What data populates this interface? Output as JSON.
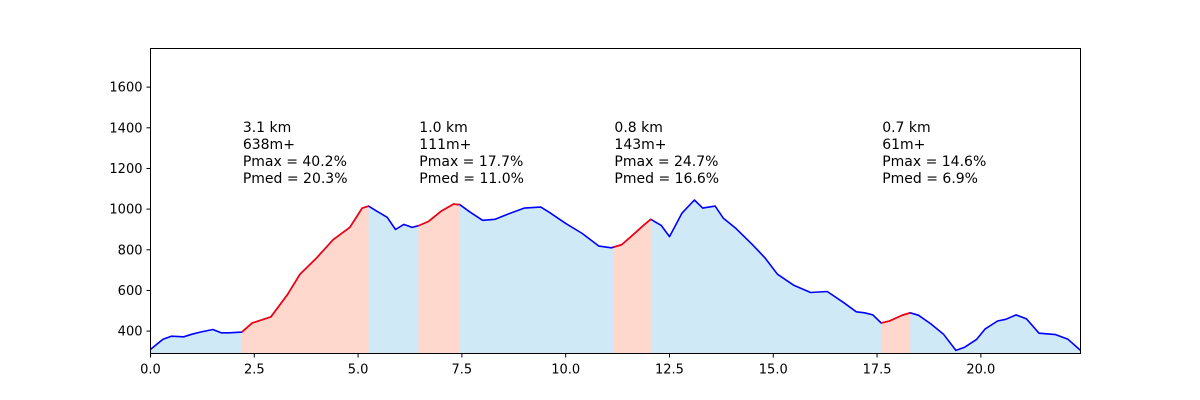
{
  "chart_data": {
    "type": "area",
    "title": "",
    "xlabel": "",
    "ylabel": "",
    "xlim": [
      0,
      22.4
    ],
    "ylim": [
      290,
      1790
    ],
    "xticks": [
      "0.0",
      "2.5",
      "5.0",
      "7.5",
      "10.0",
      "12.5",
      "15.0",
      "17.5",
      "20.0"
    ],
    "yticks": [
      "400",
      "600",
      "800",
      "1000",
      "1200",
      "1400",
      "1600"
    ],
    "grid": false,
    "colors": {
      "profile_line": "#0000ff",
      "climb_line": "#ff0000",
      "profile_fill": "#cfe9f6",
      "climb_fill": "#fed8cc"
    },
    "profile": {
      "x": [
        0,
        0.3,
        0.5,
        0.8,
        1.0,
        1.2,
        1.5,
        1.7,
        1.9,
        2.2,
        2.45,
        2.9,
        3.3,
        3.6,
        4.0,
        4.4,
        4.8,
        5.1,
        5.25,
        5.45,
        5.7,
        5.9,
        6.1,
        6.3,
        6.45,
        6.7,
        7.0,
        7.3,
        7.45,
        7.7,
        8.0,
        8.3,
        8.6,
        9.0,
        9.4,
        9.6,
        10.0,
        10.4,
        10.8,
        11.1,
        11.35,
        11.6,
        11.9,
        12.05,
        12.3,
        12.5,
        12.8,
        13.1,
        13.3,
        13.6,
        13.8,
        14.1,
        14.5,
        14.8,
        15.1,
        15.5,
        15.9,
        16.3,
        16.7,
        17.0,
        17.2,
        17.4,
        17.6,
        17.8,
        18.1,
        18.3,
        18.5,
        18.8,
        19.1,
        19.4,
        19.6,
        19.9,
        20.1,
        20.4,
        20.6,
        20.85,
        21.1,
        21.4,
        21.8,
        22.1,
        22.4
      ],
      "y": [
        310,
        360,
        375,
        372,
        385,
        395,
        408,
        392,
        392,
        395,
        440,
        470,
        580,
        680,
        760,
        850,
        910,
        1005,
        1015,
        990,
        960,
        900,
        925,
        910,
        918,
        940,
        990,
        1025,
        1022,
        985,
        945,
        950,
        975,
        1005,
        1010,
        985,
        930,
        880,
        818,
        810,
        825,
        870,
        925,
        950,
        920,
        865,
        980,
        1045,
        1005,
        1015,
        955,
        905,
        825,
        760,
        680,
        625,
        590,
        595,
        540,
        495,
        490,
        480,
        440,
        450,
        478,
        490,
        478,
        435,
        385,
        305,
        320,
        360,
        410,
        450,
        458,
        480,
        460,
        390,
        383,
        360,
        305
      ]
    },
    "climbs": [
      {
        "x_start": 2.2,
        "x_end": 5.25,
        "km_label": "3.1 km",
        "gain_label": "638m+",
        "pmax_label": "Pmax = 40.2%",
        "pmed_label": "Pmed = 20.3%"
      },
      {
        "x_start": 6.45,
        "x_end": 7.45,
        "km_label": "1.0 km",
        "gain_label": "111m+",
        "pmax_label": "Pmax = 17.7%",
        "pmed_label": "Pmed = 11.0%"
      },
      {
        "x_start": 11.15,
        "x_end": 12.05,
        "km_label": "0.8 km",
        "gain_label": "143m+",
        "pmax_label": "Pmax = 24.7%",
        "pmed_label": "Pmed = 16.6%"
      },
      {
        "x_start": 17.6,
        "x_end": 18.3,
        "km_label": "0.7 km",
        "gain_label": "61m+",
        "pmax_label": "Pmax = 14.6%",
        "pmed_label": "Pmed = 6.9%"
      }
    ]
  }
}
